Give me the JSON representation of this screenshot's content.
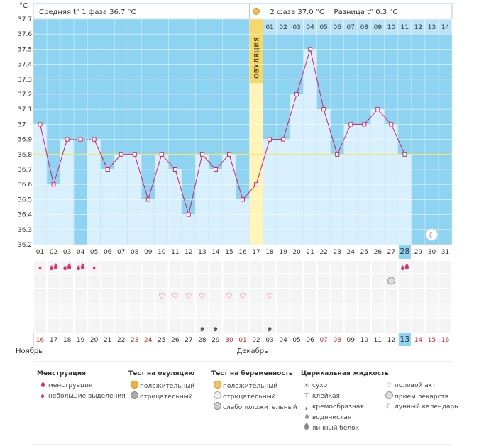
{
  "chart_data": {
    "type": "line",
    "y_unit": "°C",
    "ylim": [
      36.2,
      37.7
    ],
    "y_ticks": [
      "37.7",
      "37.6",
      "37.5",
      "37.4",
      "37.3",
      "37.2",
      "37.1",
      "37",
      "36.9",
      "36.8",
      "36.7",
      "36.6",
      "36.5",
      "36.4",
      "36.3",
      "36.2"
    ],
    "days": [
      "01",
      "02",
      "03",
      "04",
      "05",
      "06",
      "07",
      "08",
      "09",
      "10",
      "11",
      "12",
      "13",
      "14",
      "15",
      "16",
      "17",
      "18",
      "19",
      "20",
      "21",
      "22",
      "23",
      "24",
      "25",
      "26",
      "27",
      "28",
      "29",
      "30",
      "31"
    ],
    "temperatures": [
      37.0,
      36.6,
      36.9,
      36.9,
      36.9,
      36.7,
      36.8,
      36.8,
      36.5,
      36.8,
      36.7,
      36.4,
      36.8,
      36.7,
      36.8,
      36.5,
      36.6,
      36.9,
      36.9,
      37.2,
      37.5,
      37.1,
      36.8,
      37.0,
      37.0,
      37.1,
      37.0,
      36.8,
      null,
      null,
      null
    ],
    "coverline": 36.8,
    "gap_days": [
      "04"
    ],
    "highlight_day": "28",
    "ovulation_day": "17",
    "phase2_days": [
      "01",
      "02",
      "03",
      "04",
      "05",
      "06",
      "07",
      "08",
      "09",
      "10",
      "11",
      "12",
      "13",
      "14"
    ],
    "dates": [
      "16",
      "17",
      "18",
      "19",
      "20",
      "21",
      "22",
      "23",
      "24",
      "25",
      "26",
      "27",
      "28",
      "29",
      "30",
      "01",
      "02",
      "03",
      "04",
      "05",
      "06",
      "07",
      "08",
      "09",
      "10",
      "11",
      "12",
      "13",
      "14",
      "15",
      "16"
    ],
    "weekend_dates": [
      "16",
      "23",
      "24",
      "30",
      "01",
      "07",
      "08",
      "14",
      "15"
    ],
    "month_labels": [
      {
        "day": "01",
        "label": "Ноябрь"
      },
      {
        "day": "16",
        "label": "Декабрь"
      }
    ],
    "highlight_date": "13",
    "menstruation_heavy": [
      "02",
      "03",
      "04",
      "28"
    ],
    "menstruation_light": [
      "01",
      "05"
    ],
    "intercourse_days": [
      "10",
      "11",
      "12",
      "13",
      "15",
      "16",
      "18"
    ],
    "creamy_fluid_days": [
      "13",
      "14",
      "18"
    ],
    "medication_days": [
      "27"
    ],
    "lunar_days": [
      "30"
    ],
    "header": {
      "phase1": "Средняя t° 1 фаза 36.7 °C",
      "phase2": "2 фаза 37.0 °C",
      "diff": "Разница t° 0.3 °C"
    },
    "ovulation_label": "ОВУЛЯЦИЯ"
  },
  "legend": {
    "menstruation": {
      "title": "Менструация",
      "items": [
        "менструация",
        "небольшие выделения"
      ]
    },
    "ovulation": {
      "title": "Тест на овуляцию",
      "items": [
        "положительный",
        "отрицательный"
      ]
    },
    "pregnancy": {
      "title": "Тест на беременность",
      "items": [
        "положительный",
        "отрицательный",
        "слабоположительный"
      ]
    },
    "cervical": {
      "title": "Церикальная жидкость",
      "items": [
        "сухо",
        "клейкая",
        "кремообразная",
        "водянистая",
        "яичный белок"
      ]
    },
    "other": {
      "items": [
        "половой акт",
        "прием лекарств",
        "лунный календарь"
      ]
    }
  }
}
